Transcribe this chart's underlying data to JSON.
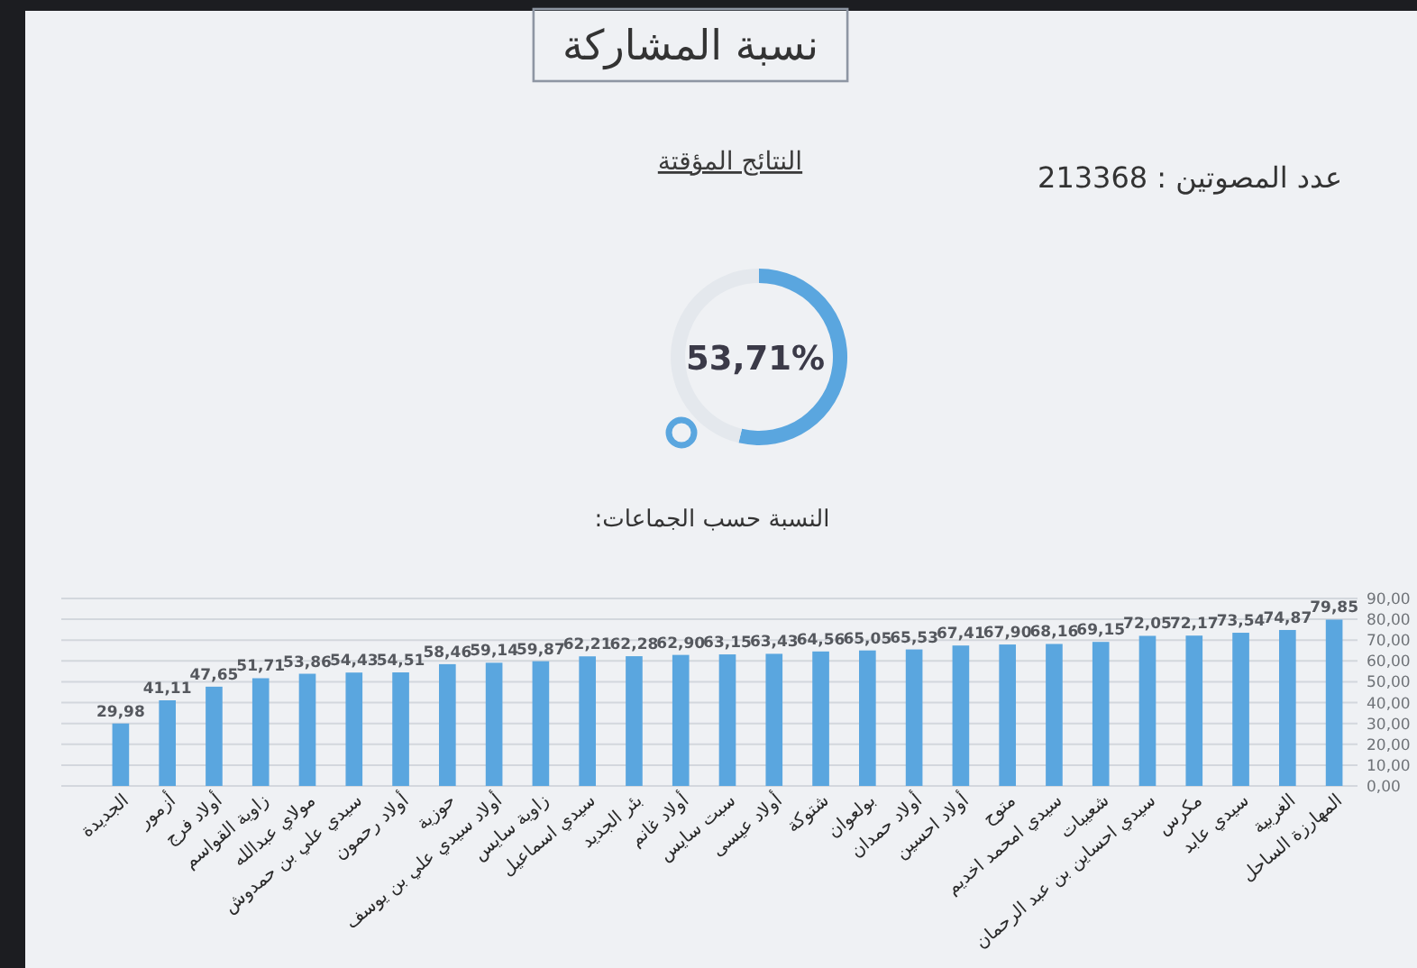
{
  "chart_data": [
    {
      "type": "donut",
      "title": "نسبة المشاركة",
      "subtitle": "النتائج المؤقتة",
      "annotations": [
        "عدد المصوتين : 213368",
        "53,71%"
      ],
      "categories": [
        null,
        null
      ],
      "values": [
        53.71,
        46.29
      ],
      "colors": [
        "#5aa6df",
        "#e4e8ed"
      ]
    },
    {
      "type": "bar",
      "title": "النسبة حسب الجماعات:",
      "categories": [
        "الجديدة",
        "أزمور",
        "أولاد فرج",
        "زاوية القواسم",
        "مولاي عبدالله",
        "سيدي علي بن حمدوش",
        "أولاد رحمون",
        "حوزية",
        "أولاد سيدي علي بن يوسف",
        "زاوية سايس",
        "سيدي اسماعيل",
        "بئر الجديد",
        "أولاد غانم",
        "سبت سايس",
        "أولاد عيسى",
        "شتوكة",
        "بولعوان",
        "أولاد حمدان",
        "أولاد احسين",
        "متوح",
        "سيدي امحمد اخديم",
        "شعيبات",
        "سيدي احساين بن عبد الرحمان",
        "مكرس",
        "سيدي عابد",
        "الغربية",
        "المهارزة الساحل"
      ],
      "series": [
        {
          "color": "#5aa6df",
          "values": [
            29.98,
            41.11,
            47.65,
            51.71,
            53.86,
            54.43,
            54.51,
            58.46,
            59.14,
            59.87,
            62.21,
            62.28,
            62.9,
            63.15,
            63.43,
            64.56,
            65.05,
            65.53,
            67.41,
            67.9,
            68.16,
            69.15,
            72.05,
            72.17,
            73.54,
            74.87,
            79.85
          ],
          "value_labels": [
            "29,98",
            "41,11",
            "47,65",
            "51,71",
            "53,86",
            "54,43",
            "54,51",
            "58,46",
            "59,14",
            "59,87",
            "62,21",
            "62,28",
            "62,90",
            "63,15",
            "63,43",
            "64,56",
            "65,05",
            "65,53",
            "67,41",
            "67,90",
            "68,16",
            "69,15",
            "72,05",
            "72,17",
            "73,54",
            "74,87",
            "79,85"
          ]
        }
      ],
      "ylim": [
        0,
        90
      ],
      "yticks": [
        {
          "value": 0,
          "label": "0,00"
        },
        {
          "value": 10,
          "label": "10,00"
        },
        {
          "value": 20,
          "label": "20,00"
        },
        {
          "value": 30,
          "label": "30,00"
        },
        {
          "value": 40,
          "label": "40,00"
        },
        {
          "value": 50,
          "label": "50,00"
        },
        {
          "value": 60,
          "label": "60,00"
        },
        {
          "value": 70,
          "label": "70,00"
        },
        {
          "value": 80,
          "label": "80,00"
        },
        {
          "value": 90,
          "label": "90,00"
        }
      ],
      "grid": "y"
    }
  ]
}
